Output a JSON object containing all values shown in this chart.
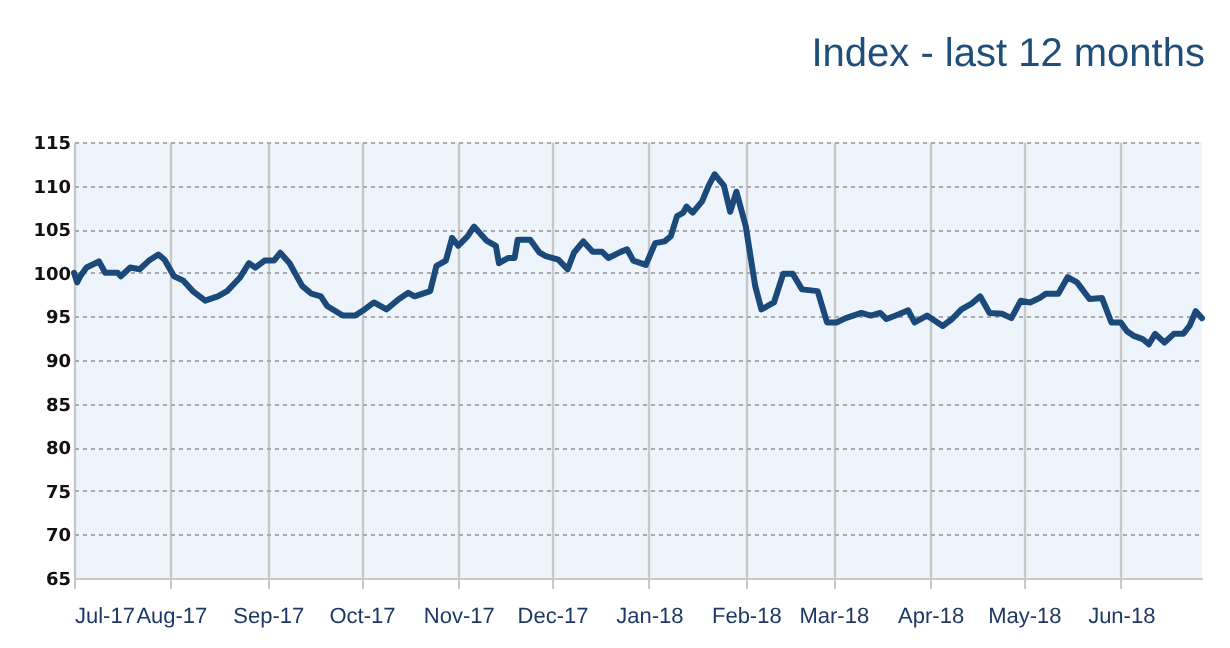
{
  "chart_data": {
    "type": "line",
    "title": "Index - last 12 months",
    "x": [
      "2017-07-01",
      "2017-07-02",
      "2017-07-03",
      "2017-07-05",
      "2017-07-09",
      "2017-07-11",
      "2017-07-15",
      "2017-07-16",
      "2017-07-19",
      "2017-07-22",
      "2017-07-25",
      "2017-07-28",
      "2017-07-30",
      "2017-08-02",
      "2017-08-05",
      "2017-08-08",
      "2017-08-12",
      "2017-08-16",
      "2017-08-19",
      "2017-08-23",
      "2017-08-26",
      "2017-08-28",
      "2017-08-31",
      "2017-09-03",
      "2017-09-05",
      "2017-09-08",
      "2017-09-12",
      "2017-09-15",
      "2017-09-18",
      "2017-09-20",
      "2017-09-25",
      "2017-09-29",
      "2017-10-02",
      "2017-10-05",
      "2017-10-09",
      "2017-10-13",
      "2017-10-16",
      "2017-10-18",
      "2017-10-23",
      "2017-10-25",
      "2017-10-28",
      "2017-10-30",
      "2017-11-01",
      "2017-11-04",
      "2017-11-06",
      "2017-11-10",
      "2017-11-13",
      "2017-11-14",
      "2017-11-17",
      "2017-11-19",
      "2017-11-20",
      "2017-11-24",
      "2017-11-27",
      "2017-11-29",
      "2017-12-03",
      "2017-12-06",
      "2017-12-08",
      "2017-12-11",
      "2017-12-14",
      "2017-12-17",
      "2017-12-19",
      "2017-12-23",
      "2017-12-25",
      "2017-12-27",
      "2017-12-31",
      "2018-01-03",
      "2018-01-06",
      "2018-01-08",
      "2018-01-10",
      "2018-01-12",
      "2018-01-13",
      "2018-01-15",
      "2018-01-18",
      "2018-01-20",
      "2018-01-22",
      "2018-01-25",
      "2018-01-27",
      "2018-01-29",
      "2018-02-01",
      "2018-02-04",
      "2018-02-06",
      "2018-02-10",
      "2018-02-13",
      "2018-02-16",
      "2018-02-19",
      "2018-02-24",
      "2018-02-27",
      "2018-03-02",
      "2018-03-05",
      "2018-03-10",
      "2018-03-13",
      "2018-03-16",
      "2018-03-18",
      "2018-03-21",
      "2018-03-25",
      "2018-03-27",
      "2018-03-31",
      "2018-04-05",
      "2018-04-08",
      "2018-04-11",
      "2018-04-14",
      "2018-04-17",
      "2018-04-20",
      "2018-04-24",
      "2018-04-27",
      "2018-04-30",
      "2018-05-03",
      "2018-05-06",
      "2018-05-08",
      "2018-05-12",
      "2018-05-15",
      "2018-05-18",
      "2018-05-22",
      "2018-05-26",
      "2018-05-29",
      "2018-06-01",
      "2018-06-03",
      "2018-06-05",
      "2018-06-08",
      "2018-06-10",
      "2018-06-12",
      "2018-06-15",
      "2018-06-18",
      "2018-06-21",
      "2018-06-23",
      "2018-06-25",
      "2018-06-27"
    ],
    "series": [
      {
        "color": "#1b4a7a",
        "values": [
          100.0,
          98.9,
          99.6,
          100.6,
          101.3,
          100.0,
          100.0,
          99.6,
          100.6,
          100.4,
          101.4,
          102.1,
          101.5,
          99.6,
          99.1,
          97.9,
          96.8,
          97.3,
          97.9,
          99.4,
          101.1,
          100.6,
          101.4,
          101.4,
          102.3,
          101.1,
          98.5,
          97.6,
          97.3,
          96.2,
          95.1,
          95.1,
          95.8,
          96.6,
          95.8,
          97.0,
          97.7,
          97.3,
          97.9,
          100.8,
          101.4,
          104.0,
          103.1,
          104.2,
          105.3,
          103.7,
          103.1,
          101.1,
          101.7,
          101.7,
          103.8,
          103.8,
          102.3,
          101.9,
          101.5,
          100.4,
          102.3,
          103.6,
          102.4,
          102.4,
          101.7,
          102.4,
          102.7,
          101.4,
          100.9,
          103.4,
          103.6,
          104.2,
          106.5,
          106.9,
          107.6,
          106.9,
          108.2,
          109.9,
          111.3,
          110.0,
          107.0,
          109.3,
          105.3,
          98.5,
          95.8,
          96.6,
          99.9,
          99.9,
          98.1,
          97.9,
          94.3,
          94.3,
          94.8,
          95.4,
          95.1,
          95.4,
          94.7,
          95.1,
          95.7,
          94.3,
          95.1,
          93.9,
          94.7,
          95.8,
          96.4,
          97.3,
          95.4,
          95.3,
          94.8,
          96.8,
          96.6,
          97.1,
          97.6,
          97.6,
          99.5,
          98.9,
          97.0,
          97.1,
          94.3,
          94.3,
          93.3,
          92.8,
          92.4,
          91.8,
          93.0,
          92.0,
          93.0,
          93.0,
          93.9,
          95.6,
          94.8
        ]
      }
    ],
    "xlim": [
      "2017-07-01",
      "2018-06-27"
    ],
    "xticks": [
      {
        "value": "2017-07-01",
        "label": "Jul-17"
      },
      {
        "value": "2017-08-01",
        "label": "Aug-17"
      },
      {
        "value": "2017-09-01",
        "label": "Sep-17"
      },
      {
        "value": "2017-10-01",
        "label": "Oct-17"
      },
      {
        "value": "2017-11-01",
        "label": "Nov-17"
      },
      {
        "value": "2017-12-01",
        "label": "Dec-17"
      },
      {
        "value": "2018-01-01",
        "label": "Jan-18"
      },
      {
        "value": "2018-02-01",
        "label": "Feb-18"
      },
      {
        "value": "2018-03-01",
        "label": "Mar-18"
      },
      {
        "value": "2018-04-01",
        "label": "Apr-18"
      },
      {
        "value": "2018-05-01",
        "label": "May-18"
      },
      {
        "value": "2018-06-01",
        "label": "Jun-18"
      }
    ],
    "ylim": [
      65,
      115
    ],
    "yticks": [
      65,
      70,
      75,
      80,
      85,
      90,
      95,
      100,
      105,
      110,
      115
    ],
    "grid": true
  }
}
